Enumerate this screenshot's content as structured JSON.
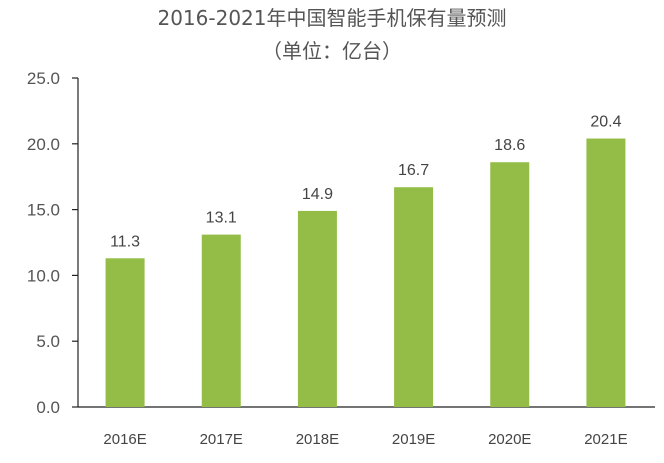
{
  "chart_data": {
    "type": "bar",
    "title": "2016-2021年中国智能手机保有量预测",
    "subtitle": "（单位：亿台）",
    "categories": [
      "2016E",
      "2017E",
      "2018E",
      "2019E",
      "2020E",
      "2021E"
    ],
    "values": [
      11.3,
      13.1,
      14.9,
      16.7,
      18.6,
      20.4
    ],
    "value_labels": [
      "11.3",
      "13.1",
      "14.9",
      "16.7",
      "18.6",
      "20.4"
    ],
    "yticks": [
      "0.0",
      "5.0",
      "10.0",
      "15.0",
      "20.0",
      "25.0"
    ],
    "ylim": [
      0,
      25
    ],
    "xlabel": "",
    "ylabel": "",
    "grid": false,
    "bar_color": "#94bd47"
  }
}
